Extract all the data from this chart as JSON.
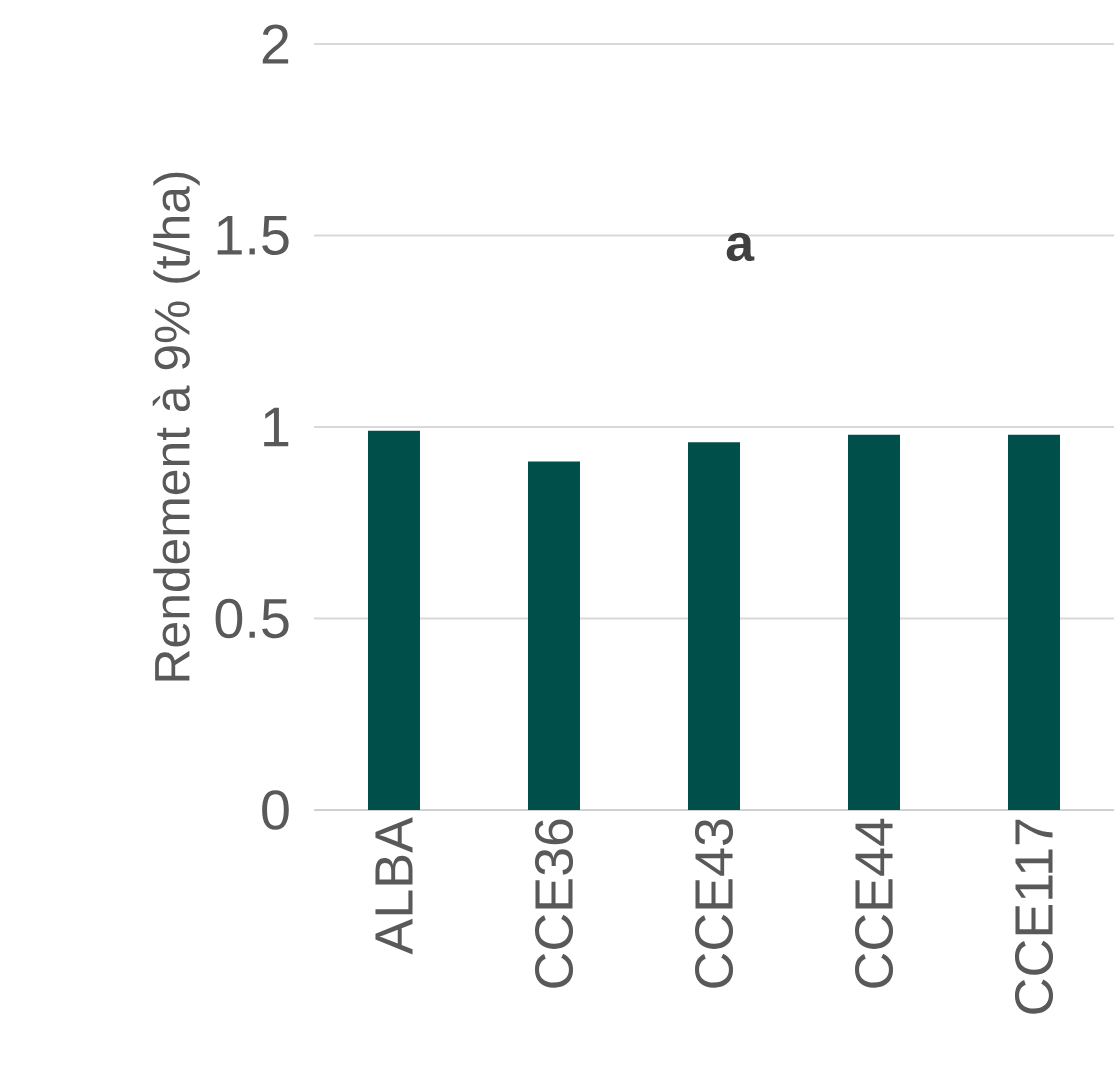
{
  "chart_data": {
    "type": "bar",
    "ylabel": "Rendement à 9% (t/ha)",
    "categories": [
      "ALBA",
      "CCE36",
      "CCE43",
      "CCE44",
      "CCE117"
    ],
    "values": [
      0.99,
      0.91,
      0.96,
      0.98,
      0.98
    ],
    "color": "#004f4b",
    "ylim": [
      0,
      2
    ],
    "yticks": [
      0,
      0.5,
      1,
      1.5,
      2
    ],
    "grid": "y",
    "annotations": [
      "a"
    ]
  }
}
